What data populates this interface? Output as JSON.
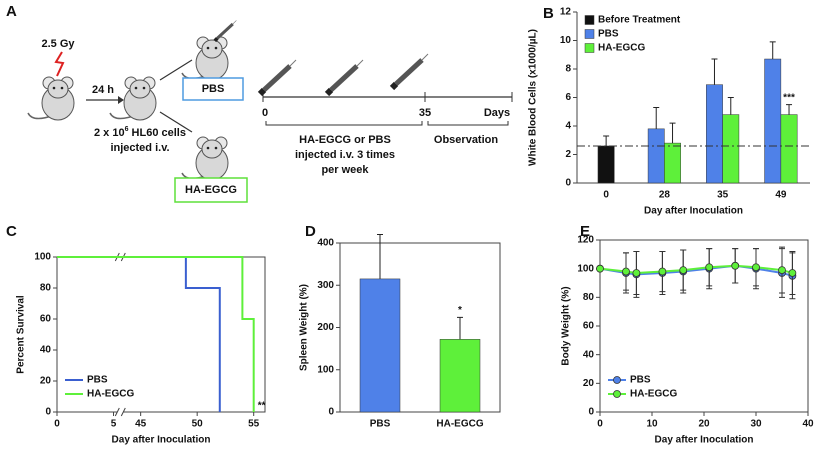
{
  "diagram": {
    "panel": "A",
    "dose": "2.5 Gy",
    "interval": "24 h",
    "cells": [
      "2 x 10",
      "6",
      " HL60 cells"
    ],
    "cells_note": "injected i.v.",
    "groups": [
      "PBS",
      "HA-EGCG"
    ],
    "timeline": {
      "start": "0",
      "end_treatment": "35",
      "unit": "Days",
      "treatment": [
        "HA-EGCG or PBS",
        "injected i.v. 3 times",
        "per week"
      ],
      "observation": "Observation"
    }
  },
  "chart_data": [
    {
      "panel": "B",
      "type": "bar",
      "ylabel": "White Blood Cells (x1000/µL)",
      "xlabel": "Day after Inoculation",
      "categories": [
        "0",
        "28",
        "35",
        "49"
      ],
      "series": [
        {
          "name": "Before Treatment",
          "color": "#111111",
          "values": [
            2.6,
            null,
            null,
            null
          ],
          "errors": [
            0.7,
            null,
            null,
            null
          ]
        },
        {
          "name": "PBS",
          "color": "#4f81e8",
          "values": [
            null,
            3.8,
            6.9,
            8.7
          ],
          "errors": [
            null,
            1.5,
            1.8,
            1.2
          ]
        },
        {
          "name": "HA-EGCG",
          "color": "#5ef03a",
          "values": [
            null,
            2.8,
            4.8,
            4.8
          ],
          "errors": [
            null,
            1.4,
            1.2,
            0.7
          ],
          "value_annotations": [
            null,
            null,
            null,
            "***"
          ]
        }
      ],
      "ylim": [
        0,
        12
      ],
      "yticks": [
        0,
        2,
        4,
        6,
        8,
        10,
        12
      ],
      "reference_line": 2.6,
      "legend": "upper left",
      "frame": false
    },
    {
      "panel": "C",
      "type": "line",
      "step": true,
      "ylabel": "Percent Survival",
      "xlabel": "Day after Inoculation",
      "xlim": [
        0,
        56
      ],
      "xbreak": [
        5.6,
        43.2
      ],
      "xticks": [
        0,
        5,
        45,
        50,
        55
      ],
      "ylim": [
        0,
        100
      ],
      "yticks": [
        0,
        20,
        40,
        60,
        80,
        100
      ],
      "series": [
        {
          "name": "PBS",
          "color": "#3a5fd0",
          "x": [
            0,
            49,
            52
          ],
          "values": [
            100,
            80,
            0
          ]
        },
        {
          "name": "HA-EGCG",
          "color": "#5ef03a",
          "x": [
            0,
            54,
            55
          ],
          "values": [
            100,
            60,
            0
          ],
          "annotation": "**"
        }
      ],
      "legend": "lower left",
      "frame": true
    },
    {
      "panel": "D",
      "type": "bar",
      "ylabel": "Spleen Weight (%)",
      "categories": [
        "PBS",
        "HA-EGCG"
      ],
      "values": [
        315,
        172
      ],
      "errors": [
        105,
        52
      ],
      "colors": [
        "#4f81e8",
        "#5ef03a"
      ],
      "value_annotations": [
        null,
        "*"
      ],
      "ylim": [
        0,
        400
      ],
      "yticks": [
        0,
        100,
        200,
        300,
        400
      ],
      "frame": true
    },
    {
      "panel": "E",
      "type": "line",
      "markers": true,
      "ylabel": "Body Weight (%)",
      "xlabel": "Day after Inoculation",
      "xlim": [
        0,
        40
      ],
      "xticks": [
        0,
        10,
        20,
        30,
        40
      ],
      "ylim": [
        0,
        120
      ],
      "yticks": [
        0,
        20,
        40,
        60,
        80,
        100,
        120
      ],
      "series": [
        {
          "name": "PBS",
          "color": "#4f81e8",
          "x": [
            0,
            5,
            7,
            12,
            16,
            21,
            26,
            30,
            35,
            37
          ],
          "values": [
            100,
            97,
            96,
            97,
            98,
            100,
            102,
            100,
            97,
            95
          ],
          "errors": [
            0,
            14,
            16,
            15,
            15,
            14,
            12,
            14,
            17,
            16
          ]
        },
        {
          "name": "HA-EGCG",
          "color": "#5ef03a",
          "x": [
            0,
            5,
            7,
            12,
            16,
            21,
            26,
            30,
            35,
            37
          ],
          "values": [
            100,
            98,
            97,
            98,
            99,
            101,
            102,
            101,
            99,
            97
          ],
          "errors": [
            0,
            13,
            15,
            14,
            14,
            13,
            12,
            13,
            16,
            15
          ]
        }
      ],
      "legend": "lower left",
      "frame": true
    }
  ]
}
